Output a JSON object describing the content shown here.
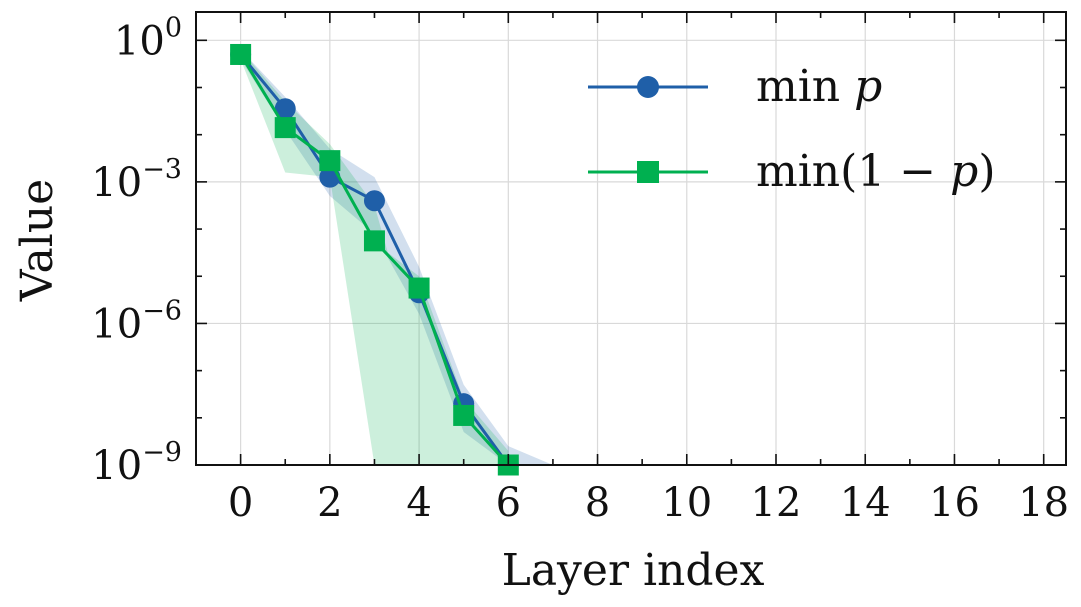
{
  "chart_data": {
    "type": "line",
    "xlabel": "Layer index",
    "ylabel": "Value",
    "yscale": "log",
    "xlim": [
      -1,
      18.5
    ],
    "ylim_log10": [
      -9,
      0.6
    ],
    "x_ticks": [
      0,
      2,
      4,
      6,
      8,
      10,
      12,
      14,
      16,
      18
    ],
    "x_tick_labels": [
      "0",
      "2",
      "4",
      "6",
      "8",
      "10",
      "12",
      "14",
      "16",
      "18"
    ],
    "y_ticks_log10": [
      0,
      -3,
      -6,
      -9
    ],
    "y_tick_labels": [
      {
        "base": "10",
        "exp": "0"
      },
      {
        "base": "10",
        "exp": "−3"
      },
      {
        "base": "10",
        "exp": "−6"
      },
      {
        "base": "10",
        "exp": "−9"
      }
    ],
    "grid": true,
    "legend_position": "top-right",
    "series": [
      {
        "name": "min p",
        "legend_func": "min",
        "legend_arg": "p",
        "color": "#1f5fa8",
        "marker": "circle",
        "x": [
          0,
          1,
          2,
          3,
          4,
          5,
          6
        ],
        "log10_values": [
          -0.3,
          -1.45,
          -2.9,
          -3.4,
          -5.35,
          -7.7,
          -9.0
        ],
        "band_x": [
          0,
          1,
          2,
          3,
          4,
          5,
          6,
          7
        ],
        "band_upper_log10": [
          -0.2,
          -1.2,
          -2.3,
          -2.9,
          -4.8,
          -7.3,
          -8.6,
          -9.0
        ],
        "band_lower_log10": [
          -0.4,
          -1.9,
          -3.3,
          -4.1,
          -5.8,
          -8.3,
          -9.0,
          -9.0
        ]
      },
      {
        "name": "min(1 − p)",
        "legend_func": "min(1 − ",
        "legend_arg": "p",
        "legend_close": ")",
        "color": "#00b050",
        "marker": "square",
        "x": [
          0,
          1,
          2,
          3,
          4,
          5,
          6
        ],
        "log10_values": [
          -0.3,
          -1.85,
          -2.55,
          -4.25,
          -5.25,
          -7.95,
          -9.0
        ],
        "band_x": [
          0,
          1,
          2,
          3,
          3.3,
          4,
          5,
          6
        ],
        "band_upper_log10": [
          -0.2,
          -1.3,
          -2.2,
          -3.5,
          -4.5,
          -5.0,
          -7.6,
          -8.7
        ],
        "band_lower_log10": [
          -0.4,
          -2.8,
          -2.9,
          -9.0,
          -9.0,
          -9.0,
          -9.0,
          -9.0
        ]
      }
    ]
  }
}
